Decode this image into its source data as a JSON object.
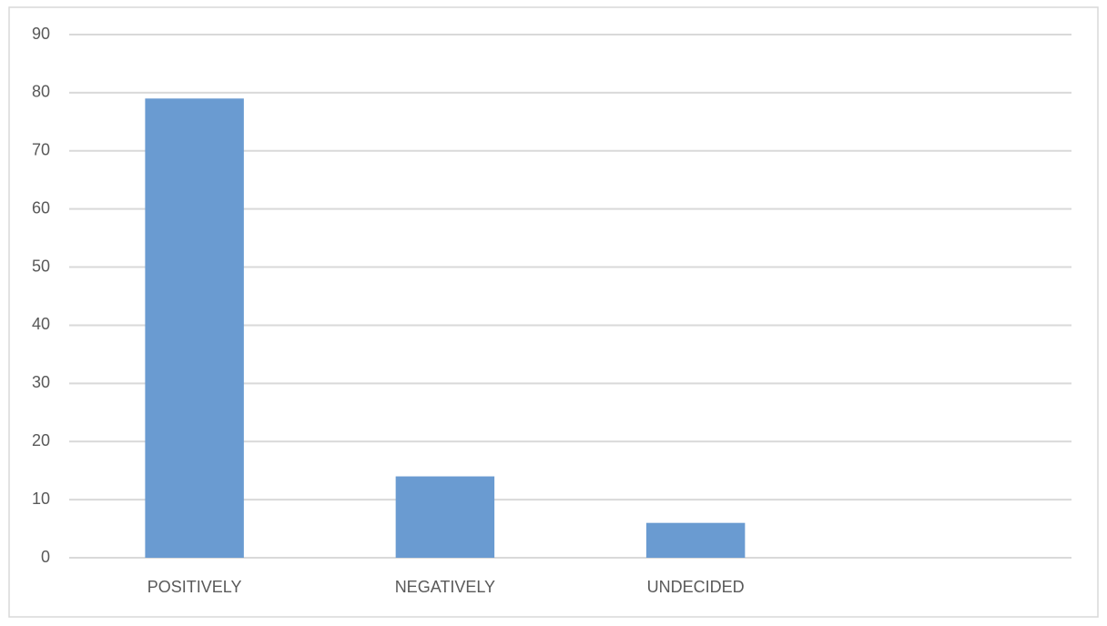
{
  "chart_data": {
    "type": "bar",
    "categories": [
      "POSITIVELY",
      "NEGATIVELY",
      "UNDECIDED",
      null
    ],
    "values": [
      79,
      14,
      6,
      null
    ],
    "color": "#6a9bd1",
    "ylim": [
      0,
      90
    ],
    "yticks": [
      0,
      10,
      20,
      30,
      40,
      50,
      60,
      70,
      80,
      90
    ],
    "grid": true
  }
}
